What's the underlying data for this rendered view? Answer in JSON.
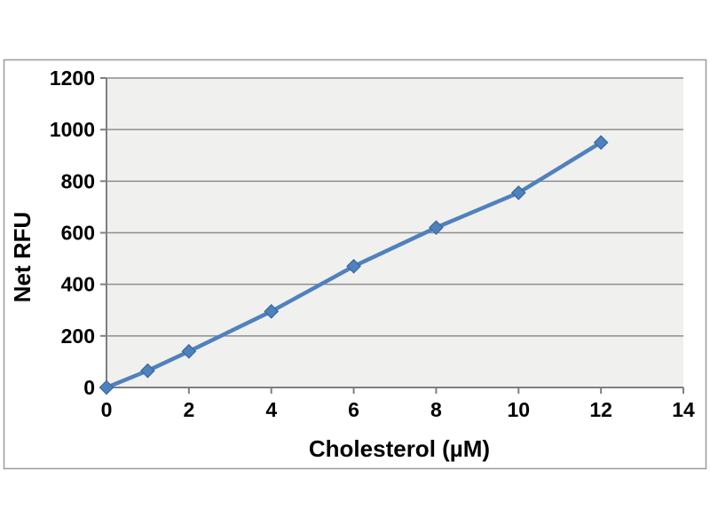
{
  "chart_data": {
    "type": "line",
    "title": "",
    "xlabel": "Cholesterol (µM)",
    "ylabel": "Net RFU",
    "x": [
      0,
      1,
      2,
      4,
      6,
      8,
      10,
      12
    ],
    "values": [
      0,
      65,
      140,
      295,
      470,
      620,
      755,
      950
    ],
    "xlim": [
      0,
      14
    ],
    "ylim": [
      0,
      1200
    ],
    "x_ticks": [
      0,
      2,
      4,
      6,
      8,
      10,
      12,
      14
    ],
    "y_ticks": [
      0,
      200,
      400,
      600,
      800,
      1000,
      1200
    ],
    "marker": "diamond",
    "grid": "horizontal",
    "legend": "none",
    "colors": {
      "series": "#4f81bd",
      "marker_edge": "#38679e",
      "plot_bg": "#f0f0ee",
      "gridline": "#8e8e8e",
      "axis": "#7f7f7f",
      "chart_border": "#9a9a9a",
      "background": "#ffffff",
      "text": "#000000"
    }
  }
}
